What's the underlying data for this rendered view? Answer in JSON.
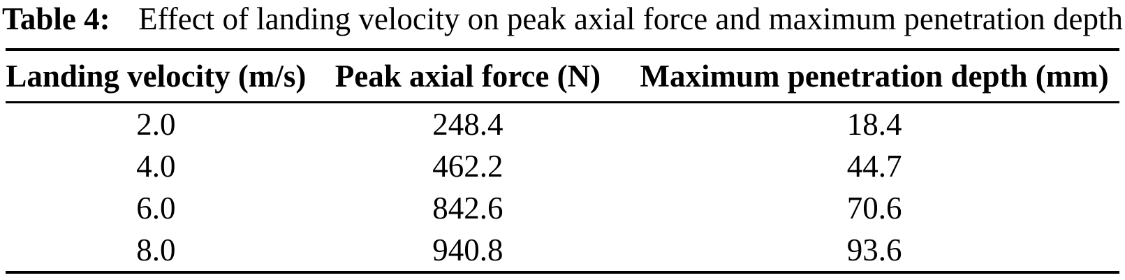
{
  "caption": {
    "label": "Table 4:",
    "text": "Effect of landing velocity on peak axial force and maximum penetration depth"
  },
  "table": {
    "headers": [
      "Landing velocity (m/s)",
      "Peak axial force (N)",
      "Maximum penetration depth (mm)"
    ],
    "rows": [
      [
        "2.0",
        "248.4",
        "18.4"
      ],
      [
        "4.0",
        "462.2",
        "44.7"
      ],
      [
        "6.0",
        "842.6",
        "70.6"
      ],
      [
        "8.0",
        "940.8",
        "93.6"
      ]
    ]
  },
  "colors": {
    "text": "#000000",
    "background": "#ffffff",
    "rule": "#000000"
  },
  "chart_data": {
    "type": "table",
    "title": "Table 4: Effect of landing velocity on peak axial force and maximum penetration depth",
    "columns": [
      "Landing velocity (m/s)",
      "Peak axial force (N)",
      "Maximum penetration depth (mm)"
    ],
    "rows": [
      [
        2.0,
        248.4,
        18.4
      ],
      [
        4.0,
        462.2,
        44.7
      ],
      [
        6.0,
        842.6,
        70.6
      ],
      [
        8.0,
        940.8,
        93.6
      ]
    ]
  }
}
